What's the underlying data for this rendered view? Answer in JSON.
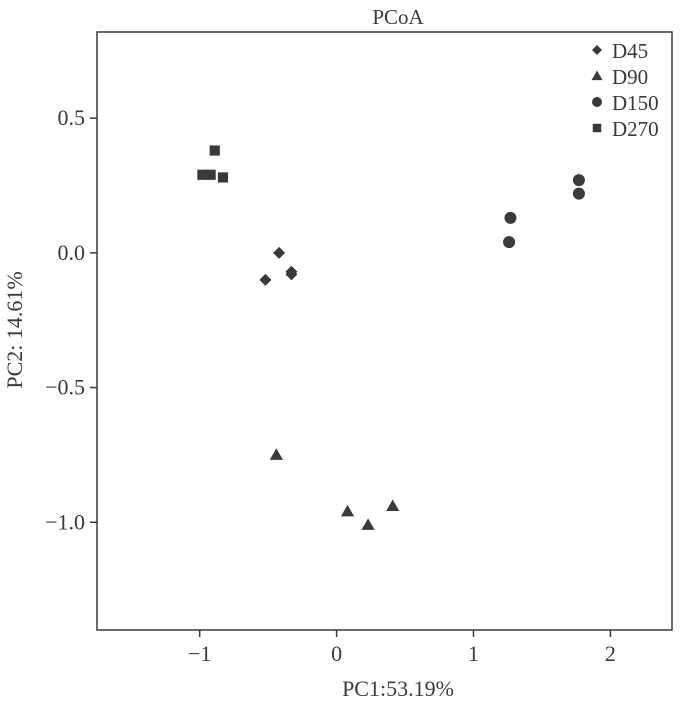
{
  "chart_data": {
    "type": "scatter",
    "title": "PCoA",
    "xlabel": "PC1:53.19%",
    "ylabel": "PC2: 14.61%",
    "xlim": [
      -1.75,
      2.45
    ],
    "ylim": [
      -1.4,
      0.82
    ],
    "xticks": [
      -1,
      0,
      1,
      2
    ],
    "xtick_labels": [
      "−1",
      "0",
      "1",
      "2"
    ],
    "yticks": [
      0.5,
      0.0,
      -0.5,
      -1.0
    ],
    "ytick_labels": [
      "0.5",
      "0.0",
      "−0.5",
      "−1.0"
    ],
    "grid": false,
    "legend_position": "top-right",
    "series": [
      {
        "name": "D45",
        "marker": "diamond",
        "points": [
          [
            -0.42,
            0.0
          ],
          [
            -0.33,
            -0.07
          ],
          [
            -0.33,
            -0.08
          ],
          [
            -0.52,
            -0.1
          ]
        ]
      },
      {
        "name": "D90",
        "marker": "triangle",
        "points": [
          [
            -0.44,
            -0.75
          ],
          [
            0.08,
            -0.96
          ],
          [
            0.23,
            -1.01
          ],
          [
            0.41,
            -0.94
          ]
        ]
      },
      {
        "name": "D150",
        "marker": "circle",
        "points": [
          [
            1.27,
            0.13
          ],
          [
            1.26,
            0.04
          ],
          [
            1.77,
            0.27
          ],
          [
            1.77,
            0.22
          ]
        ]
      },
      {
        "name": "D270",
        "marker": "square",
        "points": [
          [
            -0.89,
            0.38
          ],
          [
            -0.98,
            0.29
          ],
          [
            -0.92,
            0.29
          ],
          [
            -0.83,
            0.28
          ]
        ]
      }
    ],
    "colors": {
      "marker": "#3a3a3a",
      "axis": "#3a3a3a",
      "background": "#ffffff"
    }
  }
}
